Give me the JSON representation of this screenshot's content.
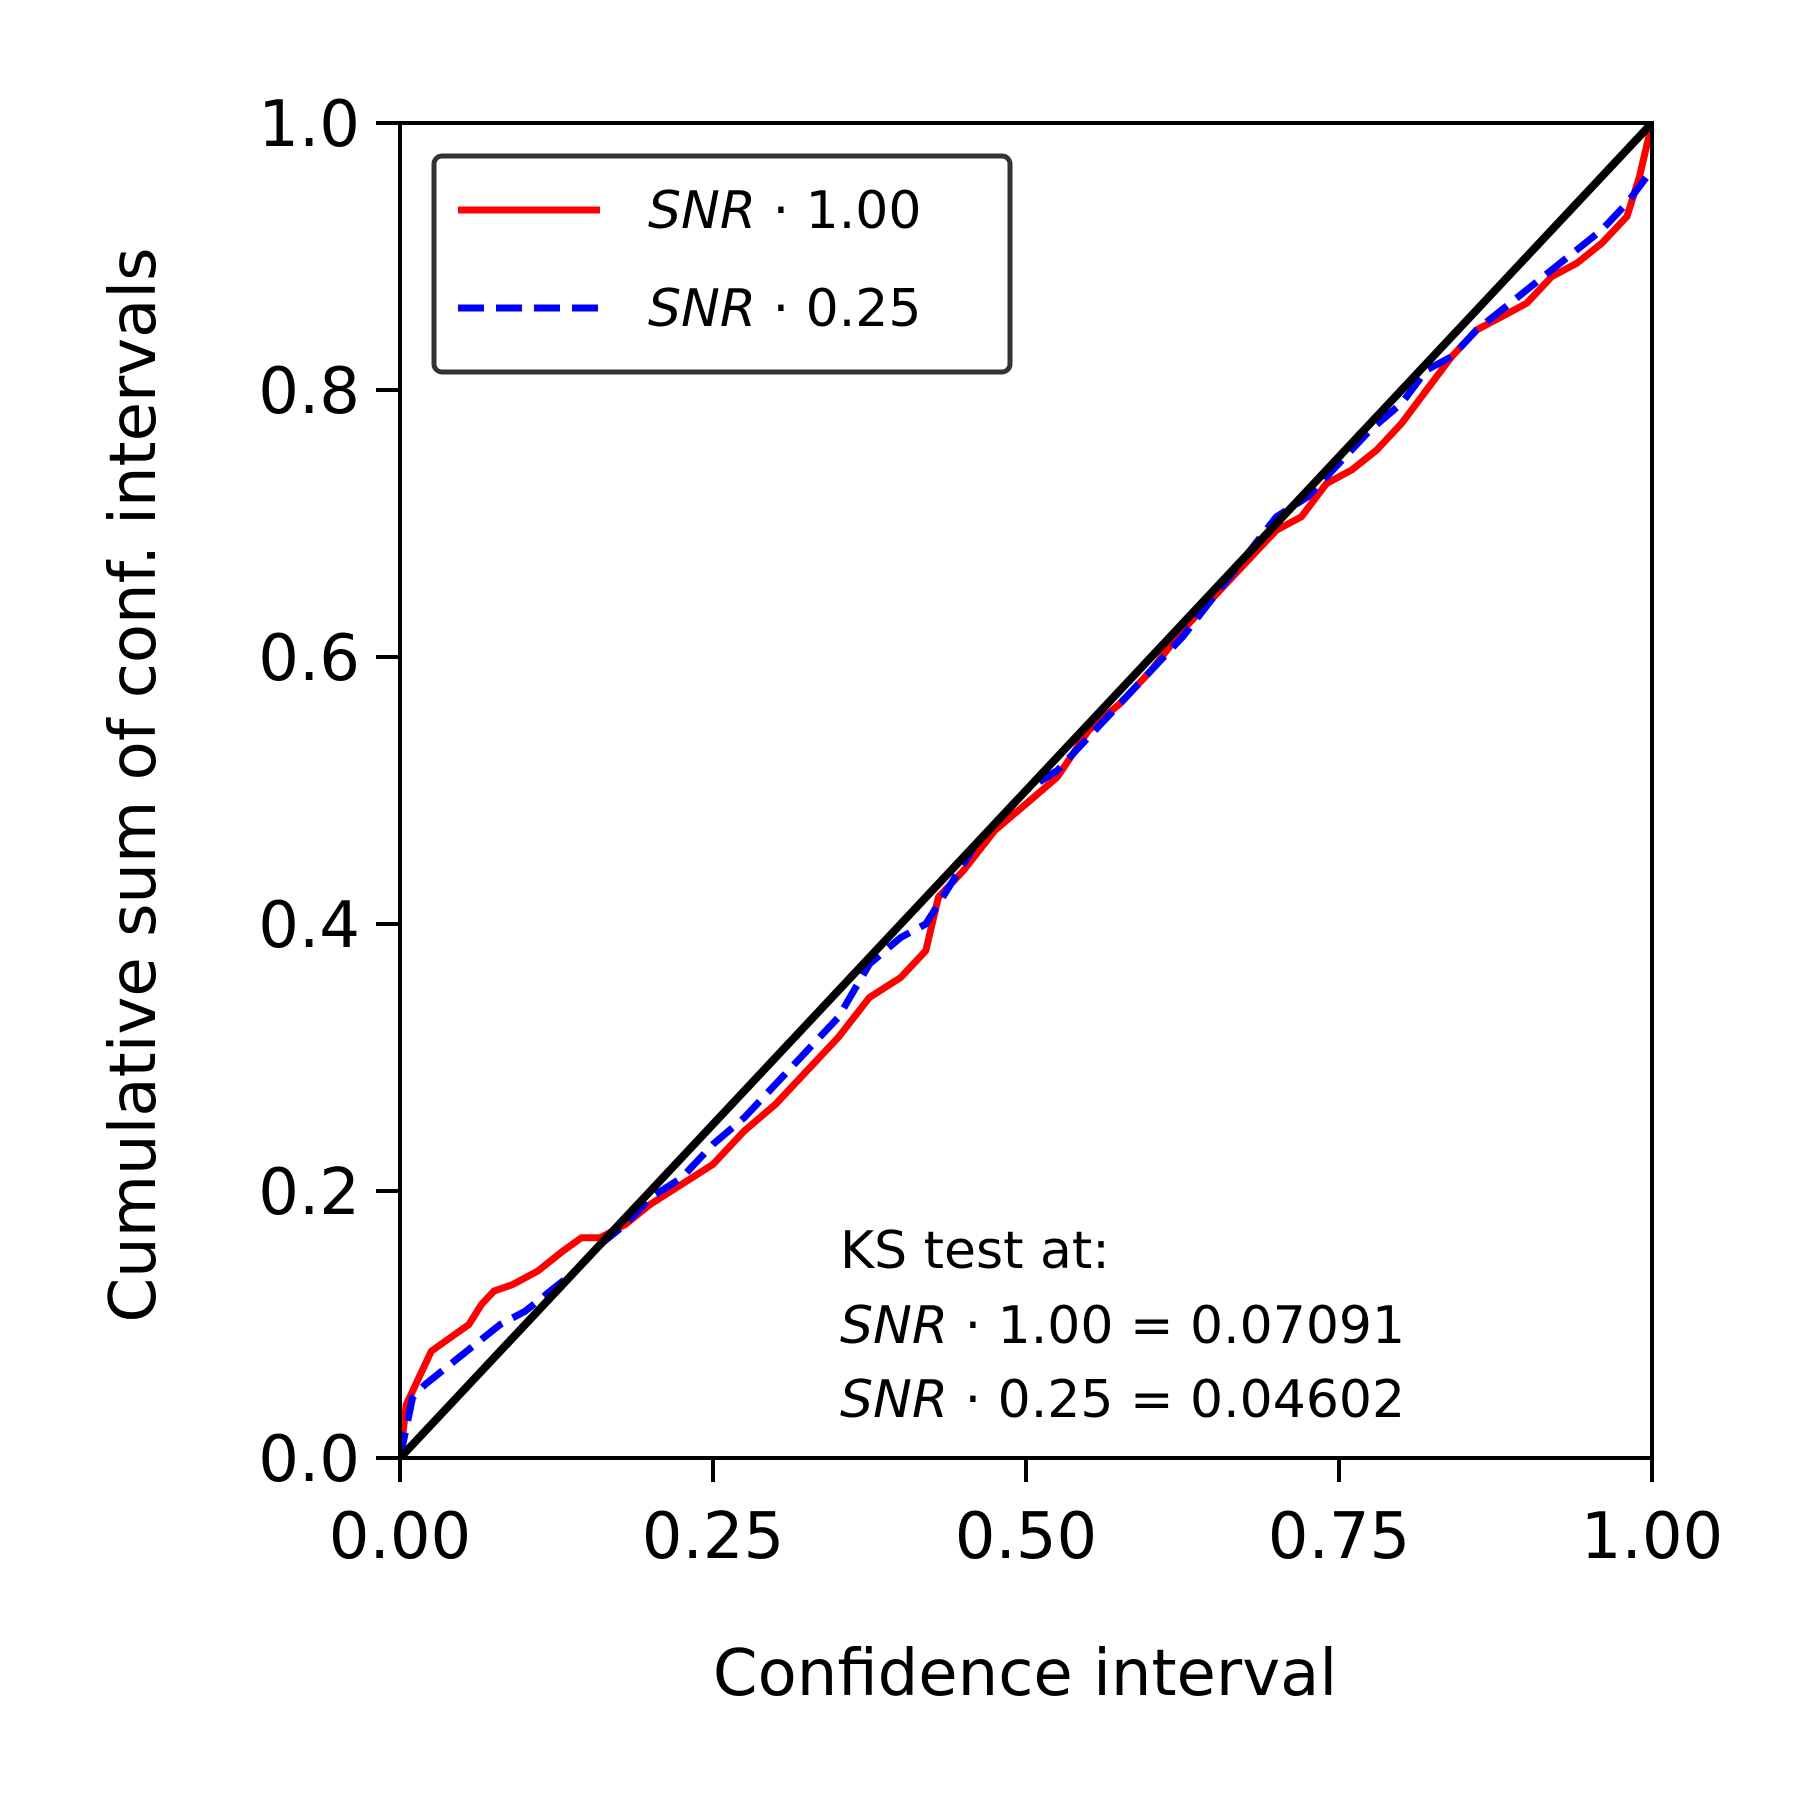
{
  "chart_data": {
    "type": "line",
    "title": "",
    "xlabel": "Confidence interval",
    "ylabel": "Cumulative sum of conf. intervals",
    "xlim": [
      0,
      1
    ],
    "ylim": [
      0,
      1
    ],
    "xticks": [
      "0.00",
      "0.25",
      "0.50",
      "0.75",
      "1.00"
    ],
    "yticks": [
      "0.0",
      "0.2",
      "0.4",
      "0.6",
      "0.8",
      "1.0"
    ],
    "grid": false,
    "legend_position": "top-left",
    "series": [
      {
        "name": "SNR · 1.00",
        "name_italic": "SNR",
        "name_rest": " · 1.00",
        "color": "#ff0000",
        "style": "solid",
        "x": [
          0.0,
          0.005,
          0.015,
          0.025,
          0.04,
          0.055,
          0.065,
          0.075,
          0.09,
          0.11,
          0.13,
          0.145,
          0.16,
          0.18,
          0.2,
          0.225,
          0.25,
          0.275,
          0.3,
          0.325,
          0.35,
          0.375,
          0.4,
          0.42,
          0.43,
          0.45,
          0.475,
          0.5,
          0.525,
          0.55,
          0.575,
          0.6,
          0.625,
          0.65,
          0.675,
          0.7,
          0.72,
          0.74,
          0.76,
          0.78,
          0.8,
          0.82,
          0.84,
          0.86,
          0.88,
          0.9,
          0.92,
          0.94,
          0.96,
          0.98,
          0.99,
          1.0
        ],
        "y": [
          0.0,
          0.04,
          0.06,
          0.08,
          0.09,
          0.1,
          0.115,
          0.125,
          0.13,
          0.14,
          0.155,
          0.165,
          0.165,
          0.175,
          0.19,
          0.205,
          0.22,
          0.245,
          0.265,
          0.29,
          0.315,
          0.345,
          0.36,
          0.38,
          0.42,
          0.44,
          0.47,
          0.49,
          0.51,
          0.545,
          0.565,
          0.59,
          0.62,
          0.645,
          0.67,
          0.695,
          0.705,
          0.73,
          0.74,
          0.755,
          0.775,
          0.8,
          0.825,
          0.845,
          0.855,
          0.865,
          0.885,
          0.895,
          0.91,
          0.93,
          0.96,
          1.0
        ]
      },
      {
        "name": "SNR · 0.25",
        "name_italic": "SNR",
        "name_rest": " · 0.25",
        "color": "#0000ff",
        "style": "dashed",
        "x": [
          0.0,
          0.01,
          0.02,
          0.04,
          0.06,
          0.08,
          0.1,
          0.12,
          0.14,
          0.16,
          0.18,
          0.2,
          0.225,
          0.25,
          0.275,
          0.3,
          0.325,
          0.35,
          0.375,
          0.4,
          0.42,
          0.44,
          0.46,
          0.48,
          0.5,
          0.525,
          0.55,
          0.575,
          0.6,
          0.625,
          0.65,
          0.675,
          0.7,
          0.725,
          0.75,
          0.775,
          0.8,
          0.82,
          0.84,
          0.86,
          0.88,
          0.9,
          0.92,
          0.94,
          0.96,
          0.98,
          1.0
        ],
        "y": [
          0.0,
          0.045,
          0.055,
          0.07,
          0.085,
          0.1,
          0.11,
          0.125,
          0.14,
          0.16,
          0.175,
          0.195,
          0.21,
          0.235,
          0.255,
          0.28,
          0.305,
          0.33,
          0.37,
          0.39,
          0.4,
          0.43,
          0.46,
          0.48,
          0.5,
          0.515,
          0.54,
          0.565,
          0.59,
          0.615,
          0.645,
          0.675,
          0.705,
          0.72,
          0.745,
          0.77,
          0.79,
          0.815,
          0.825,
          0.845,
          0.86,
          0.875,
          0.89,
          0.905,
          0.92,
          0.94,
          0.965
        ]
      },
      {
        "name": "",
        "color": "#000000",
        "style": "solid",
        "x": [
          0.0,
          1.0
        ],
        "y": [
          0.0,
          1.0
        ]
      }
    ],
    "annotations": {
      "title": "KS test at:",
      "lines": [
        {
          "italic": "SNR",
          "rest": " · 1.00 = 0.07091"
        },
        {
          "italic": "SNR",
          "rest": " · 0.25 = 0.04602"
        }
      ]
    }
  }
}
